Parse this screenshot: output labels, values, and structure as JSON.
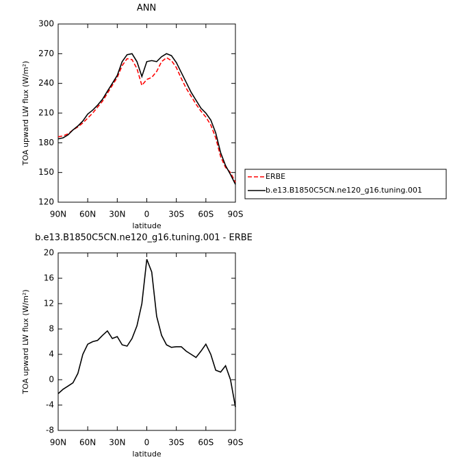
{
  "chart_data": [
    {
      "type": "line",
      "title": "ANN",
      "x_label": "latitude",
      "y_label": "TOA upward LW flux (W/m²)",
      "x": [
        90,
        85,
        80,
        75,
        70,
        65,
        60,
        55,
        50,
        45,
        40,
        35,
        30,
        25,
        20,
        15,
        10,
        5,
        0,
        -5,
        -10,
        -15,
        -20,
        -25,
        -30,
        -35,
        -40,
        -45,
        -50,
        -55,
        -60,
        -65,
        -70,
        -75,
        -80,
        -85,
        -90
      ],
      "series": [
        {
          "name": "ERBE",
          "color": "#ff0000",
          "line_style": "dashed",
          "values": [
            186,
            187,
            189,
            193,
            196,
            200,
            205,
            210,
            216,
            222,
            230,
            238,
            246,
            258,
            265,
            264,
            255,
            238,
            244,
            246,
            252,
            262,
            266,
            263,
            256,
            245,
            235,
            227,
            219,
            212,
            206,
            198,
            185,
            166,
            155,
            150,
            140
          ]
        },
        {
          "name": "b.e13.B1850C5CN.ne120_g16.tuning.001",
          "color": "#000000",
          "line_style": "solid",
          "values": [
            184,
            185,
            188,
            193,
            197,
            202,
            209,
            213,
            218,
            224,
            232,
            240,
            248,
            262,
            269,
            270,
            262,
            247,
            262,
            263,
            262,
            267,
            270,
            268,
            261,
            251,
            241,
            231,
            223,
            215,
            210,
            203,
            190,
            170,
            157,
            148,
            138
          ]
        }
      ],
      "xlim": [
        90,
        -90
      ],
      "xticks": [
        {
          "value": 90,
          "label": "90N"
        },
        {
          "value": 60,
          "label": "60N"
        },
        {
          "value": 30,
          "label": "30N"
        },
        0,
        {
          "value": -30,
          "label": "30S"
        },
        {
          "value": -60,
          "label": "60S"
        },
        {
          "value": -90,
          "label": "90S"
        }
      ],
      "ylim": [
        120,
        300
      ],
      "yticks": [
        120,
        150,
        180,
        210,
        240,
        270,
        300
      ],
      "legend": "outside-right"
    },
    {
      "type": "line",
      "title": "b.e13.B1850C5CN.ne120_g16.tuning.001 - ERBE",
      "x_label": "latitude",
      "y_label": "TOA upward LW flux (W/m²)",
      "x": [
        90,
        85,
        80,
        75,
        70,
        65,
        60,
        55,
        50,
        45,
        40,
        35,
        30,
        25,
        20,
        15,
        10,
        5,
        0,
        -5,
        -10,
        -15,
        -20,
        -25,
        -30,
        -35,
        -40,
        -45,
        -50,
        -55,
        -60,
        -65,
        -70,
        -75,
        -80,
        -85,
        -90
      ],
      "values": [
        -2.2,
        -1.5,
        -1,
        -0.5,
        1,
        4,
        5.6,
        6,
        6.2,
        7,
        7.7,
        6.5,
        6.8,
        5.5,
        5.3,
        6.5,
        8.5,
        12,
        19,
        17,
        10,
        7,
        5.5,
        5.1,
        5.2,
        5.2,
        4.5,
        4,
        3.5,
        4.5,
        5.6,
        4,
        1.5,
        1.2,
        2.2,
        0,
        -4.3
      ],
      "color": "#000000",
      "xlim": [
        90,
        -90
      ],
      "xticks": [
        {
          "value": 90,
          "label": "90N"
        },
        {
          "value": 60,
          "label": "60N"
        },
        {
          "value": 30,
          "label": "30N"
        },
        0,
        {
          "value": -30,
          "label": "30S"
        },
        {
          "value": -60,
          "label": "60S"
        },
        {
          "value": -90,
          "label": "90S"
        }
      ],
      "ylim": [
        -8,
        20
      ],
      "yticks": [
        -8,
        -4,
        0,
        4,
        8,
        12,
        16,
        20
      ]
    }
  ]
}
